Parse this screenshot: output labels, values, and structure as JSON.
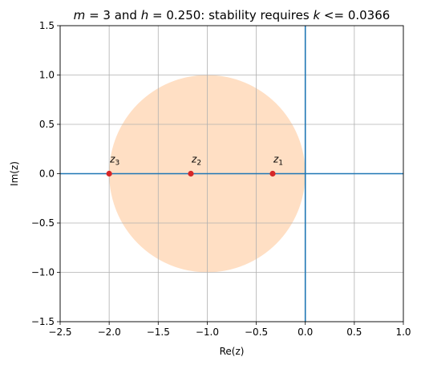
{
  "chart_data": {
    "type": "scatter",
    "title": {
      "m_var": "m",
      "m_value": "3",
      "h_var": "h",
      "h_value": "0.250",
      "text_1": " and ",
      "text_2": ": stability requires ",
      "k_var": "k",
      "text_3": " <= 0.0366"
    },
    "xlabel": "Re(z)",
    "ylabel": "Im(z)",
    "xlim": [
      -2.5,
      1.0
    ],
    "ylim": [
      -1.5,
      1.5
    ],
    "xticks": [
      -2.5,
      -2.0,
      -1.5,
      -1.0,
      -0.5,
      0.0,
      0.5,
      1.0
    ],
    "xtick_labels": [
      "−2.5",
      "−2.0",
      "−1.5",
      "−1.0",
      "−0.5",
      "0.0",
      "0.5",
      "1.0"
    ],
    "yticks": [
      -1.5,
      -1.0,
      -0.5,
      0.0,
      0.5,
      1.0,
      1.5
    ],
    "ytick_labels": [
      "−1.5",
      "−1.0",
      "−0.5",
      "0.0",
      "0.5",
      "1.0",
      "1.5"
    ],
    "grid": true,
    "stability_region": {
      "shape": "circle",
      "center": [
        -1.0,
        0.0
      ],
      "radius": 1.0,
      "color": "#ffdfc4"
    },
    "reference_lines": {
      "x": 0.0,
      "y": 0.0,
      "color": "#1f77b4"
    },
    "points": [
      {
        "x": -0.333,
        "y": 0.0,
        "label_base": "z",
        "label_sub": "1"
      },
      {
        "x": -1.167,
        "y": 0.0,
        "label_base": "z",
        "label_sub": "2"
      },
      {
        "x": -2.0,
        "y": 0.0,
        "label_base": "z",
        "label_sub": "3"
      }
    ],
    "point_color": "#d62728"
  }
}
